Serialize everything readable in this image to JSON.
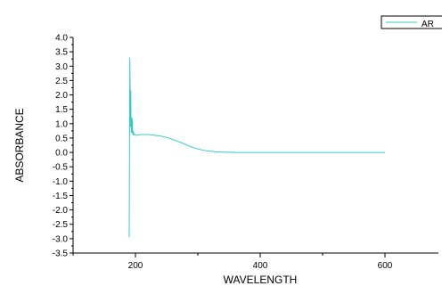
{
  "chart_data": {
    "type": "line",
    "title": "",
    "xlabel": "WAVELENGTH",
    "ylabel": "ABSORBANCE",
    "xlim": [
      100,
      700
    ],
    "ylim": [
      -3.5,
      4.0
    ],
    "x_ticks": [
      200,
      400,
      600
    ],
    "y_ticks": [
      -3.5,
      -3.0,
      -2.5,
      -2.0,
      -1.5,
      -1.0,
      -0.5,
      0.0,
      0.5,
      1.0,
      1.5,
      2.0,
      2.5,
      3.0,
      3.5,
      4.0
    ],
    "legend": {
      "placement": "top-right",
      "entries": [
        "AR"
      ]
    },
    "grid": false,
    "series": [
      {
        "name": "AR",
        "color": "#33cccc",
        "x": [
          190,
          190.5,
          191,
          191.5,
          192,
          192.5,
          193,
          193.5,
          194,
          194.5,
          195,
          195.5,
          196,
          196.5,
          197,
          198,
          199,
          200,
          202,
          205,
          210,
          220,
          230,
          240,
          250,
          260,
          270,
          280,
          290,
          300,
          310,
          320,
          330,
          340,
          350,
          360,
          380,
          400,
          450,
          500,
          550,
          600
        ],
        "y": [
          -2.95,
          0.2,
          3.28,
          2.2,
          0.9,
          2.15,
          1.0,
          0.7,
          1.2,
          0.7,
          1.15,
          0.65,
          0.75,
          0.6,
          0.68,
          0.62,
          0.63,
          0.6,
          0.6,
          0.61,
          0.62,
          0.62,
          0.6,
          0.57,
          0.52,
          0.45,
          0.37,
          0.28,
          0.19,
          0.12,
          0.07,
          0.04,
          0.02,
          0.01,
          0.005,
          0.0,
          0.0,
          0.0,
          0.0,
          0.0,
          0.0,
          0.0
        ]
      }
    ]
  }
}
